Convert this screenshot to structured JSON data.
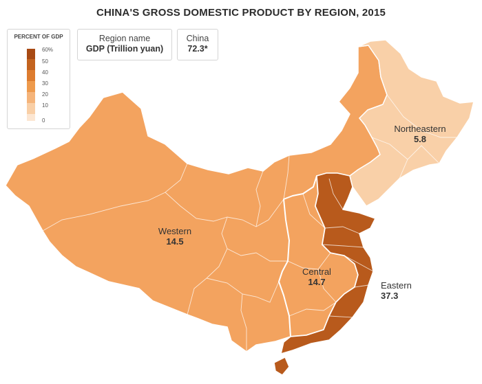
{
  "title": "CHINA'S GROSS DOMESTIC PRODUCT BY REGION, 2015",
  "legend": {
    "title": "PERCENT OF GDP",
    "ticks": [
      "60%",
      "50",
      "40",
      "30",
      "20",
      "10",
      "0"
    ],
    "colors": [
      "#a84a14",
      "#c3631f",
      "#dd7c2f",
      "#ee9a4c",
      "#f5b47a",
      "#f9cfa6",
      "#fce6d2"
    ]
  },
  "key": {
    "region_name": "Region name",
    "gdp_unit": "GDP (Trillion yuan)",
    "country": "China",
    "country_value": "72.3*"
  },
  "regions": {
    "northeastern": {
      "name": "Northeastern",
      "value": "5.8",
      "color": "#f9d0a8"
    },
    "western": {
      "name": "Western",
      "value": "14.5",
      "color": "#f3a35f"
    },
    "central": {
      "name": "Central",
      "value": "14.7",
      "color": "#f3a35f"
    },
    "eastern": {
      "name": "Eastern",
      "value": "37.3",
      "color": "#b85a1c"
    }
  }
}
